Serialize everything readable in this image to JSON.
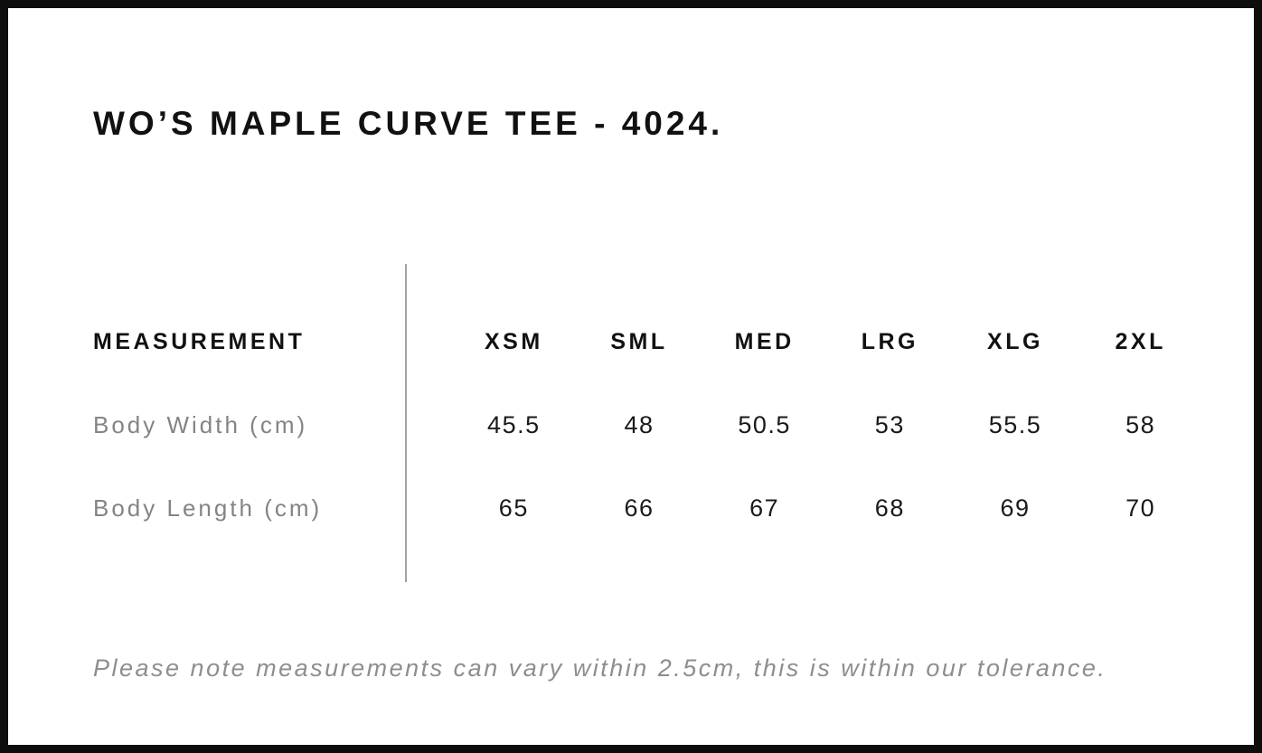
{
  "page": {
    "title": "WO’S MAPLE CURVE TEE - 4024.",
    "note": "Please note measurements can vary within 2.5cm, this is within our tolerance."
  },
  "size_chart": {
    "columns": [
      "MEASUREMENT",
      "XSM",
      "SML",
      "MED",
      "LRG",
      "XLG",
      "2XL"
    ],
    "rows": [
      {
        "label": "Body Width (cm)",
        "values": [
          "45.5",
          "48",
          "50.5",
          "53",
          "55.5",
          "58"
        ]
      },
      {
        "label": "Body Length (cm)",
        "values": [
          "65",
          "66",
          "67",
          "68",
          "69",
          "70"
        ]
      }
    ]
  },
  "colors": {
    "frame_border": "#0d0d0d",
    "title_text": "#111111",
    "header_text": "#111111",
    "row_label_text": "#848484",
    "value_text": "#1a1a1a",
    "divider": "#a3a3a3",
    "note_text": "#8e8e8e",
    "background": "#ffffff"
  }
}
